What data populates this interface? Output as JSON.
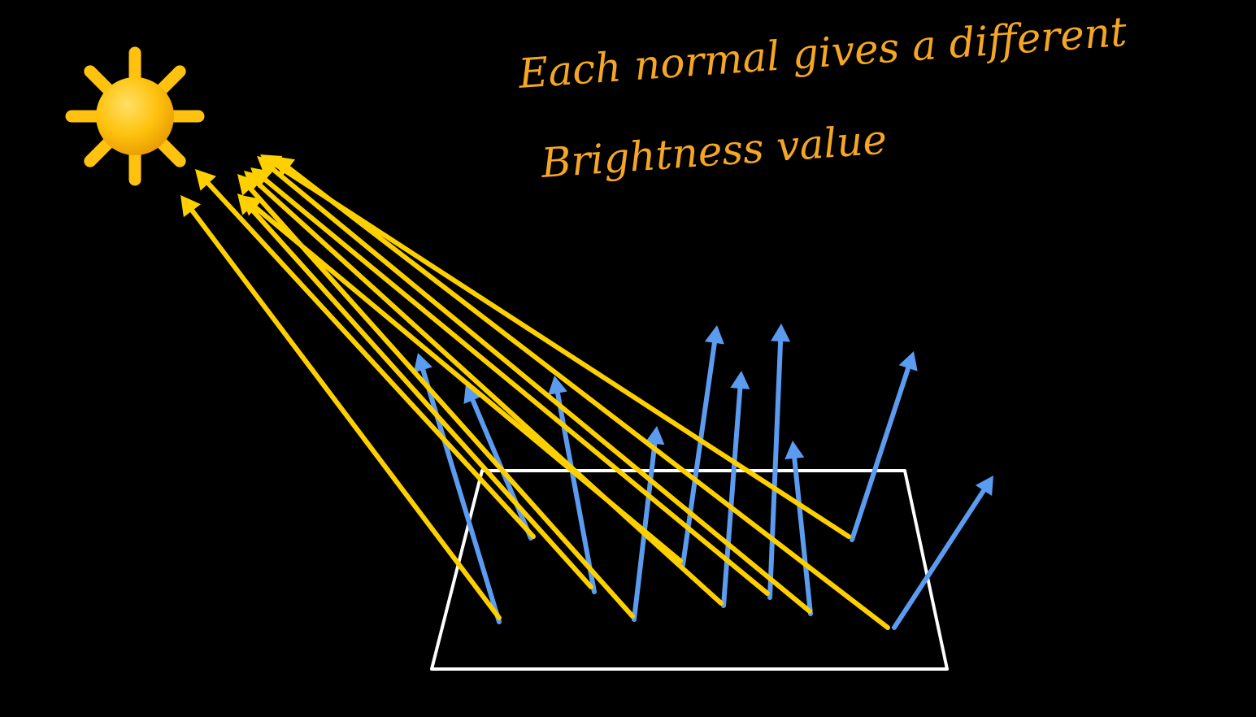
{
  "annotation": {
    "line1": "Each normal gives a different",
    "line2": "Brightness value"
  },
  "colors": {
    "background": "#000000",
    "light_ray": "#FFD000",
    "normal_vector": "#5B9BF0",
    "surface_outline": "#FFFFFF",
    "sun_body": "#FFC20E",
    "handwriting": "#F5A623"
  },
  "icons": {
    "sun": "sun-icon"
  }
}
